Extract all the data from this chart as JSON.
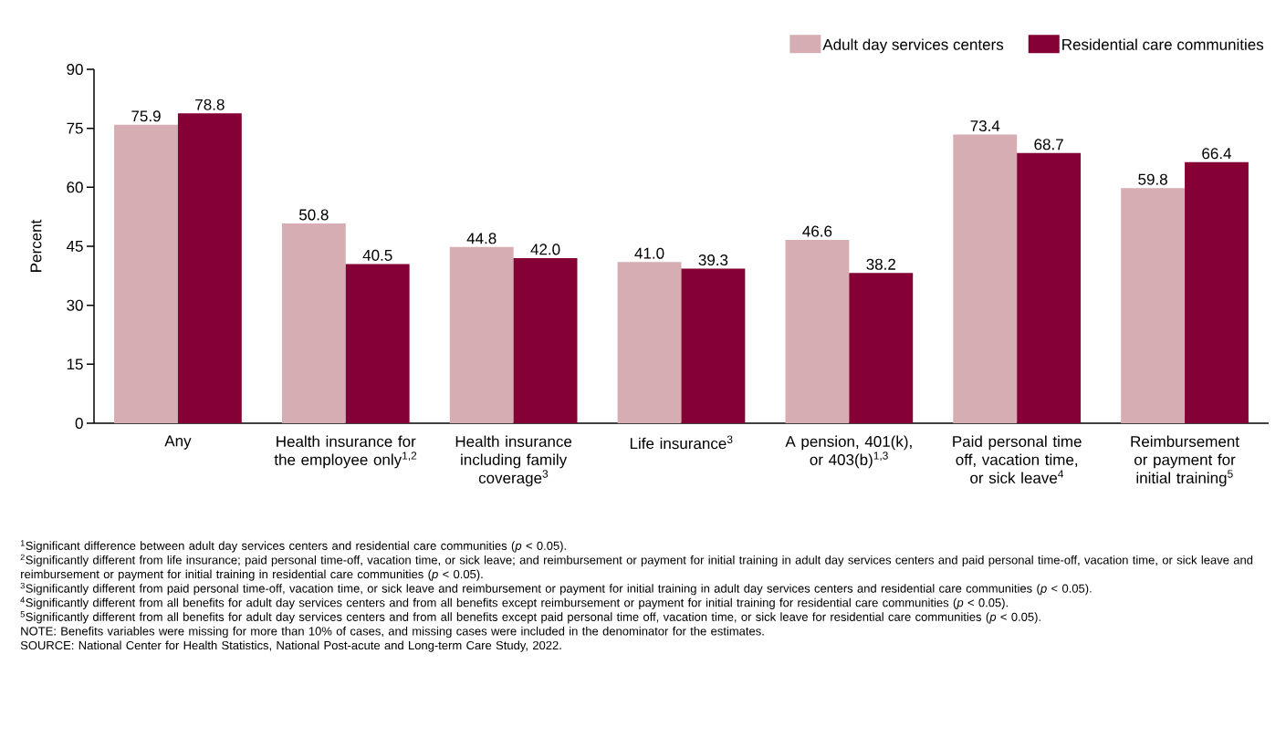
{
  "chart_data": {
    "type": "bar",
    "ylabel": "Percent",
    "categories": [
      "Any",
      "Health insurance for the employee only$^{1,2}$",
      "Health insurance including family coverage$^{3}$",
      "Life insurance$^{3}$",
      "A pension, 401(k), or 403(b)$^{1,3}$",
      "Paid personal time off, vacation time, or sick leave$^{4}$",
      "Reimbursement or payment for initial training$^{5}$"
    ],
    "series": [
      {
        "name": "Adult day services centers",
        "color": "#d6adb3",
        "values": [
          75.9,
          50.8,
          44.8,
          41.0,
          46.6,
          73.4,
          59.8
        ],
        "value_labels": [
          "75.9",
          "50.8",
          "44.8",
          "41.0",
          "46.6",
          "73.4",
          "59.8"
        ]
      },
      {
        "name": "Residential care communities",
        "color": "#840035",
        "values": [
          78.8,
          40.5,
          42.0,
          39.3,
          38.2,
          68.7,
          66.4
        ],
        "value_labels": [
          "78.8",
          "40.5",
          "42.0",
          "39.3",
          "38.2",
          "68.7",
          "66.4"
        ]
      }
    ],
    "ylim": [
      0,
      90
    ],
    "yticks": [
      0,
      15,
      30,
      45,
      60,
      75,
      90
    ],
    "legend": "top right",
    "data_labels": true,
    "annotations": [
      "$^{1}$Significant difference between adult day services centers and residential care communities (*p* < 0.05).",
      "$^{2}$Significantly different from life insurance; paid personal time-off, vacation time, or sick leave; and reimbursement or payment for initial training in adult day services centers and paid personal time-off, vacation time, or sick leave and reimbursement or payment for initial training in residential care communities (*p* < 0.05).",
      "$^{3}$Significantly different from paid personal time-off, vacation time, or sick leave and reimbursement or payment for initial training in adult day services centers and residential care communities (*p* < 0.05).",
      "$^{4}$Significantly different from all benefits for adult day services centers and from all benefits except reimbursement or payment for initial training for residential care communities (*p* < 0.05).",
      "$^{5}$Significantly different from all benefits for adult day services centers and from all benefits except paid personal time off, vacation time, or sick leave for residential care communities (*p* < 0.05).",
      "NOTE: Benefits variables were missing for more than 10% of cases, and missing cases were included in the denominator for the estimates.",
      "SOURCE: National Center for Health Statistics, National Post-acute and Long-term Care Study, 2022."
    ]
  }
}
